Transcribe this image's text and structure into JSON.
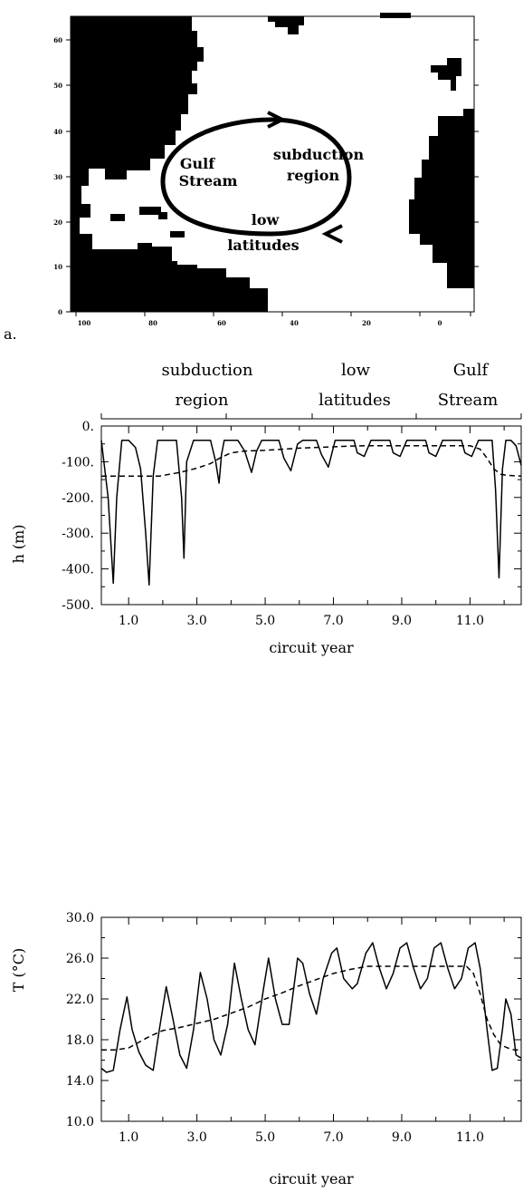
{
  "panel_a": {
    "label": "a.",
    "x_ticks": [
      "100",
      "80",
      "60",
      "40",
      "20",
      "0"
    ],
    "y_ticks": [
      "0",
      "10",
      "20",
      "30",
      "40",
      "50",
      "60"
    ],
    "circuit_labels": [
      "Gulf",
      "Stream",
      "subduction",
      "region",
      "low",
      "latitudes"
    ]
  },
  "regions": {
    "subduction": [
      "subduction",
      "region"
    ],
    "low": [
      "low",
      "latitudes"
    ],
    "gulf": [
      "Gulf",
      "Stream"
    ]
  },
  "chart_data": [
    {
      "type": "line",
      "xlabel": "circuit year",
      "ylabel": "h (m)",
      "xlim": [
        0.2,
        12.5
      ],
      "ylim": [
        -500,
        0
      ],
      "x_ticks": [
        "1.0",
        "3.0",
        "5.0",
        "7.0",
        "9.0",
        "11.0"
      ],
      "y_ticks": [
        "0.",
        "-100.",
        "-200.",
        "-300.",
        "-400.",
        "-500."
      ],
      "y_tick_values": [
        0,
        -100,
        -200,
        -300,
        -400,
        -500
      ],
      "series": [
        {
          "style": "solid",
          "x": [
            0.2,
            0.4,
            0.55,
            0.65,
            0.8,
            0.92,
            1.0,
            1.2,
            1.35,
            1.5,
            1.6,
            1.72,
            1.85,
            2.0,
            2.2,
            2.4,
            2.55,
            2.62,
            2.7,
            2.9,
            3.0,
            3.2,
            3.4,
            3.55,
            3.65,
            3.72,
            3.8,
            3.9,
            4.2,
            4.4,
            4.6,
            4.75,
            4.9,
            5.0,
            5.2,
            5.4,
            5.55,
            5.75,
            5.95,
            6.1,
            6.3,
            6.5,
            6.65,
            6.85,
            7.05,
            7.2,
            7.4,
            7.6,
            7.7,
            7.9,
            8.1,
            8.25,
            8.45,
            8.65,
            8.75,
            8.95,
            9.15,
            9.3,
            9.5,
            9.7,
            9.8,
            10.0,
            10.2,
            10.35,
            10.55,
            10.75,
            10.85,
            11.05,
            11.25,
            11.4,
            11.55,
            11.65,
            11.75,
            11.85,
            11.95,
            12.05,
            12.2,
            12.35,
            12.5
          ],
          "y": [
            -40,
            -200,
            -440,
            -200,
            -40,
            -40,
            -40,
            -60,
            -120,
            -300,
            -445,
            -140,
            -40,
            -40,
            -40,
            -40,
            -200,
            -370,
            -100,
            -40,
            -40,
            -40,
            -40,
            -100,
            -160,
            -80,
            -40,
            -40,
            -40,
            -70,
            -130,
            -70,
            -40,
            -40,
            -40,
            -40,
            -90,
            -125,
            -50,
            -40,
            -40,
            -40,
            -80,
            -115,
            -40,
            -40,
            -40,
            -40,
            -75,
            -85,
            -40,
            -40,
            -40,
            -40,
            -75,
            -85,
            -40,
            -40,
            -40,
            -40,
            -75,
            -85,
            -40,
            -40,
            -40,
            -40,
            -75,
            -85,
            -40,
            -40,
            -40,
            -40,
            -180,
            -425,
            -120,
            -40,
            -40,
            -55,
            -110
          ]
        },
        {
          "style": "dashed",
          "x": [
            0.2,
            0.6,
            1.0,
            1.5,
            1.9,
            2.5,
            3.0,
            3.4,
            3.7,
            4.0,
            4.4,
            5.0,
            5.5,
            6.0,
            6.5,
            7.0,
            7.5,
            8.0,
            8.5,
            9.0,
            9.5,
            10.0,
            10.5,
            11.0,
            11.3,
            11.5,
            11.7,
            11.9,
            12.1,
            12.5
          ],
          "y": [
            -140,
            -140,
            -140,
            -140,
            -140,
            -130,
            -118,
            -105,
            -88,
            -75,
            -70,
            -68,
            -65,
            -62,
            -60,
            -58,
            -56,
            -55,
            -55,
            -55,
            -55,
            -55,
            -55,
            -55,
            -65,
            -90,
            -120,
            -135,
            -138,
            -140
          ]
        }
      ]
    },
    {
      "type": "line",
      "xlabel": "circuit year",
      "ylabel": "T (°C)",
      "xlim": [
        0.2,
        12.5
      ],
      "ylim": [
        10,
        30
      ],
      "x_ticks": [
        "1.0",
        "3.0",
        "5.0",
        "7.0",
        "9.0",
        "11.0"
      ],
      "y_ticks": [
        "30.0",
        "26.0",
        "22.0",
        "18.0",
        "14.0",
        "10.0"
      ],
      "y_tick_values": [
        30,
        26,
        22,
        18,
        14,
        10
      ],
      "series": [
        {
          "style": "solid",
          "x": [
            0.2,
            0.35,
            0.55,
            0.75,
            0.95,
            1.1,
            1.3,
            1.5,
            1.72,
            1.9,
            2.1,
            2.3,
            2.5,
            2.7,
            2.9,
            3.1,
            3.3,
            3.5,
            3.7,
            3.9,
            4.1,
            4.3,
            4.5,
            4.7,
            4.95,
            5.1,
            5.3,
            5.5,
            5.7,
            5.95,
            6.1,
            6.3,
            6.5,
            6.7,
            6.95,
            7.1,
            7.3,
            7.55,
            7.7,
            7.95,
            8.15,
            8.35,
            8.55,
            8.75,
            8.95,
            9.15,
            9.35,
            9.55,
            9.75,
            9.95,
            10.15,
            10.35,
            10.55,
            10.75,
            10.95,
            11.15,
            11.3,
            11.5,
            11.65,
            11.8,
            11.95,
            12.05,
            12.2,
            12.35,
            12.5
          ],
          "y": [
            15.2,
            14.8,
            15.0,
            19.0,
            22.2,
            19.0,
            16.8,
            15.5,
            15.0,
            19.0,
            23.2,
            20.0,
            16.5,
            15.2,
            19.0,
            24.6,
            22.0,
            18.0,
            16.5,
            19.5,
            25.5,
            22.0,
            19.0,
            17.5,
            23.0,
            26.0,
            22.0,
            19.5,
            19.5,
            26.0,
            25.5,
            22.5,
            20.5,
            24.0,
            26.5,
            27.0,
            24.0,
            23.0,
            23.5,
            26.5,
            27.5,
            25.0,
            23.0,
            24.5,
            27.0,
            27.5,
            25.0,
            23.0,
            24.0,
            27.0,
            27.5,
            25.0,
            23.0,
            24.0,
            27.0,
            27.5,
            25.0,
            19.0,
            15.0,
            15.2,
            19.0,
            22.0,
            20.5,
            16.5,
            16.2
          ]
        },
        {
          "style": "dashed",
          "x": [
            0.2,
            0.6,
            1.0,
            1.6,
            2.0,
            2.5,
            3.0,
            3.5,
            4.0,
            4.5,
            5.0,
            5.5,
            6.0,
            6.5,
            7.0,
            7.5,
            8.0,
            8.5,
            9.0,
            9.5,
            10.0,
            10.5,
            10.9,
            11.1,
            11.3,
            11.5,
            11.7,
            11.9,
            12.1,
            12.3,
            12.5
          ],
          "y": [
            17.0,
            17.0,
            17.2,
            18.3,
            18.9,
            19.2,
            19.6,
            20.0,
            20.6,
            21.2,
            22.0,
            22.6,
            23.3,
            23.9,
            24.5,
            24.9,
            25.2,
            25.2,
            25.2,
            25.2,
            25.2,
            25.2,
            25.2,
            24.5,
            22.5,
            20.0,
            18.5,
            17.5,
            17.2,
            17.0,
            17.0
          ]
        }
      ]
    }
  ]
}
